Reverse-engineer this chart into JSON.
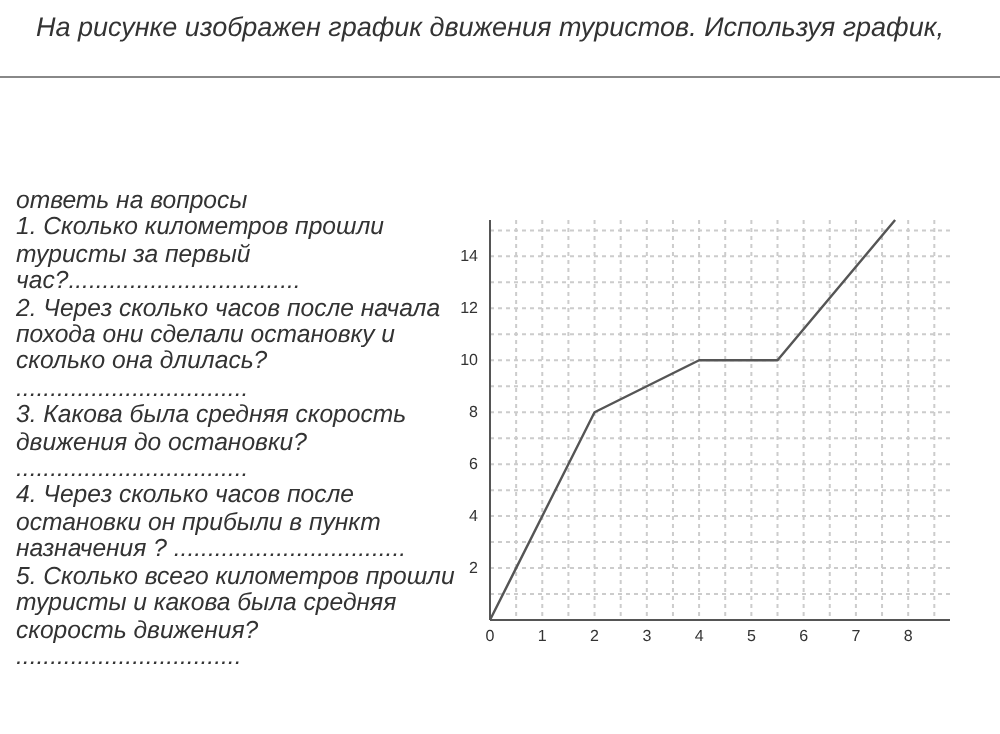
{
  "chart_data": {
    "type": "line",
    "title": "На рисунке изображен график движения туристов. Используя график, ответь на вопросы",
    "annotations": [
      "1.    Сколько километров прошли туристы за первый час?..................................",
      " 2.    Через сколько часов после начала похода они сделали остановку и сколько она длилась?",
      "..................................",
      "3.    Какова была средняя скорость движения до остановки?",
      "..................................",
      "4.    Через сколько часов после остановки он прибыли в пункт назначения ? ..................................",
      "5.   Сколько всего  километров прошли туристы и какова была средняя скорость движения?",
      "................................."
    ],
    "x": [
      0,
      2,
      4,
      5.5,
      7.75
    ],
    "series": [
      {
        "color": "#555555",
        "values": [
          0,
          8,
          10,
          10,
          15.4
        ]
      }
    ],
    "xlim": [
      0,
      8.8
    ],
    "ylim": [
      0,
      15.4
    ],
    "xticks": [
      0,
      {
        "value": 0.5,
        "label": null
      },
      1,
      {
        "value": 1.5,
        "label": null
      },
      2,
      {
        "value": 2.5,
        "label": null
      },
      3,
      {
        "value": 3.5,
        "label": null
      },
      4,
      {
        "value": 4.5,
        "label": null
      },
      5,
      {
        "value": 5.5,
        "label": null
      },
      6,
      {
        "value": 6.5,
        "label": null
      },
      7,
      {
        "value": 7.5,
        "label": null
      },
      8,
      {
        "value": 8.5,
        "label": null
      }
    ],
    "yticks": [
      {
        "value": 1,
        "label": null
      },
      2,
      {
        "value": 3,
        "label": null
      },
      4,
      {
        "value": 5,
        "label": null
      },
      6,
      {
        "value": 7,
        "label": null
      },
      8,
      {
        "value": 9,
        "label": null
      },
      10,
      {
        "value": 11,
        "label": null
      },
      12,
      {
        "value": 13,
        "label": null
      },
      14,
      {
        "value": 15,
        "label": null
      }
    ],
    "grid": true,
    "marker": "none",
    "line_style": "solid"
  }
}
